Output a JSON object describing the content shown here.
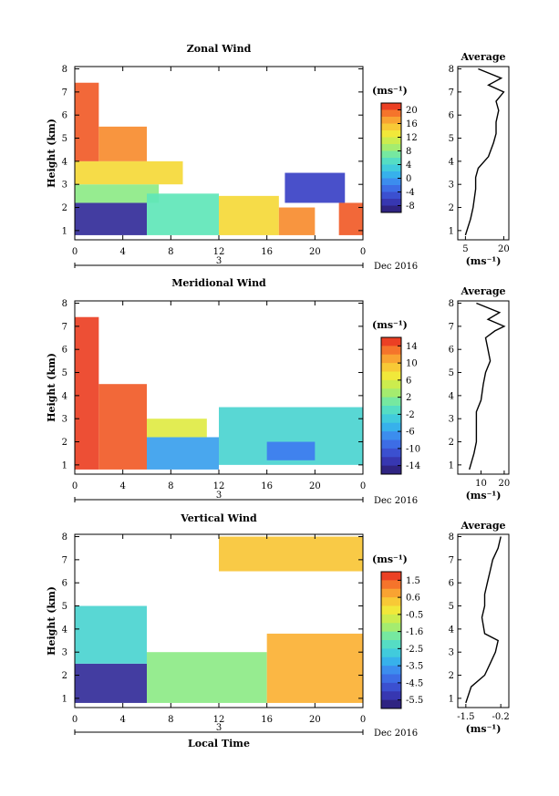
{
  "chart_data": [
    {
      "type": "heatmap",
      "title": "Zonal Wind",
      "ylabel": "Height (km)",
      "xlabel": "",
      "x_ticks": [
        "0",
        "4",
        "8",
        "12",
        "16",
        "20",
        "0"
      ],
      "y_ticks": [
        "1",
        "2",
        "3",
        "4",
        "5",
        "6",
        "7",
        "8"
      ],
      "ylim": [
        0.6,
        8.1
      ],
      "xlim": [
        0,
        24
      ],
      "date_marker": "3",
      "date_label": "Dec 2016",
      "colorbar": {
        "unit": "(ms⁻¹)",
        "ticks": [
          "20",
          "16",
          "12",
          "8",
          "4",
          "0",
          "-4",
          "-8"
        ],
        "range": [
          -10,
          22
        ]
      },
      "regions": [
        {
          "t0": 0.0,
          "t1": 6.0,
          "h0": 0.8,
          "h1": 2.2,
          "value": -8
        },
        {
          "t0": 0.0,
          "t1": 7.0,
          "h0": 2.2,
          "h1": 3.0,
          "value": 8
        },
        {
          "t0": 0.0,
          "t1": 9.0,
          "h0": 3.0,
          "h1": 4.0,
          "value": 14
        },
        {
          "t0": 0.0,
          "t1": 2.0,
          "h0": 4.0,
          "h1": 7.4,
          "value": 20
        },
        {
          "t0": 2.0,
          "t1": 6.0,
          "h0": 4.0,
          "h1": 5.5,
          "value": 18
        },
        {
          "t0": 6.0,
          "t1": 12.0,
          "h0": 0.8,
          "h1": 2.6,
          "value": 6
        },
        {
          "t0": 12.0,
          "t1": 17.0,
          "h0": 0.8,
          "h1": 2.5,
          "value": 14
        },
        {
          "t0": 17.0,
          "t1": 20.0,
          "h0": 0.8,
          "h1": 2.0,
          "value": 18
        },
        {
          "t0": 17.5,
          "t1": 22.5,
          "h0": 2.2,
          "h1": 3.5,
          "value": -6
        },
        {
          "t0": 22.0,
          "t1": 24.0,
          "h0": 0.8,
          "h1": 2.2,
          "value": 20
        }
      ],
      "avg_profile": {
        "title": "Average",
        "xlabel": "(ms⁻¹)",
        "x_ticks": [
          "5",
          "20"
        ],
        "xlim": [
          2,
          22
        ],
        "heights": [
          0.8,
          1.5,
          2.0,
          2.8,
          3.3,
          3.7,
          4.2,
          4.8,
          5.2,
          5.7,
          6.2,
          6.6,
          7.0,
          7.3,
          7.6,
          8.0
        ],
        "values": [
          5,
          7,
          8,
          9,
          9,
          10,
          14,
          16,
          17,
          17,
          18,
          17,
          20,
          14,
          19,
          10
        ]
      }
    },
    {
      "type": "heatmap",
      "title": "Meridional Wind",
      "ylabel": "Height (km)",
      "xlabel": "",
      "x_ticks": [
        "0",
        "4",
        "8",
        "12",
        "16",
        "20",
        "0"
      ],
      "y_ticks": [
        "1",
        "2",
        "3",
        "4",
        "5",
        "6",
        "7",
        "8"
      ],
      "ylim": [
        0.6,
        8.1
      ],
      "xlim": [
        0,
        24
      ],
      "date_marker": "3",
      "date_label": "Dec 2016",
      "colorbar": {
        "unit": "(ms⁻¹)",
        "ticks": [
          "14",
          "10",
          "6",
          "2",
          "-2",
          "-6",
          "-10",
          "-14"
        ],
        "range": [
          -16,
          16
        ]
      },
      "regions": [
        {
          "t0": 0.0,
          "t1": 2.0,
          "h0": 0.8,
          "h1": 7.4,
          "value": 15
        },
        {
          "t0": 2.0,
          "t1": 6.0,
          "h0": 0.8,
          "h1": 4.5,
          "value": 14
        },
        {
          "t0": 6.0,
          "t1": 12.0,
          "h0": 0.8,
          "h1": 2.2,
          "value": -6
        },
        {
          "t0": 6.0,
          "t1": 11.0,
          "h0": 2.2,
          "h1": 3.0,
          "value": 6
        },
        {
          "t0": 12.0,
          "t1": 24.0,
          "h0": 1.0,
          "h1": 3.5,
          "value": -2
        },
        {
          "t0": 16.0,
          "t1": 20.0,
          "h0": 1.2,
          "h1": 2.0,
          "value": -8
        }
      ],
      "avg_profile": {
        "title": "Average",
        "xlabel": "(ms⁻¹)",
        "x_ticks": [
          "10",
          "20"
        ],
        "xlim": [
          0,
          22
        ],
        "heights": [
          0.8,
          1.5,
          2.0,
          2.8,
          3.3,
          3.8,
          4.5,
          5.0,
          5.5,
          6.0,
          6.5,
          6.8,
          7.0,
          7.3,
          7.6,
          8.0
        ],
        "values": [
          5,
          7,
          8,
          8,
          8,
          10,
          11,
          12,
          14,
          13,
          12,
          16,
          20,
          13,
          18,
          8
        ]
      }
    },
    {
      "type": "heatmap",
      "title": "Vertical Wind",
      "ylabel": "Height (km)",
      "xlabel": "Local Time",
      "x_ticks": [
        "0",
        "4",
        "8",
        "12",
        "16",
        "20",
        "0"
      ],
      "y_ticks": [
        "1",
        "2",
        "3",
        "4",
        "5",
        "6",
        "7",
        "8"
      ],
      "ylim": [
        0.6,
        8.1
      ],
      "xlim": [
        0,
        24
      ],
      "date_marker": "3",
      "date_label": "Dec 2016",
      "colorbar": {
        "unit": "(ms⁻¹)",
        "ticks": [
          "1.5",
          "0.6",
          "-0.5",
          "-1.6",
          "-2.5",
          "-3.5",
          "-4.5",
          "-5.5"
        ],
        "range": [
          -6,
          2
        ]
      },
      "regions": [
        {
          "t0": 0.0,
          "t1": 6.0,
          "h0": 0.8,
          "h1": 2.5,
          "value": -5.5
        },
        {
          "t0": 0.0,
          "t1": 6.0,
          "h0": 2.5,
          "h1": 5.0,
          "value": -2.5
        },
        {
          "t0": 6.0,
          "t1": 16.0,
          "h0": 0.8,
          "h1": 3.0,
          "value": -1.5
        },
        {
          "t0": 16.0,
          "t1": 24.0,
          "h0": 0.8,
          "h1": 3.8,
          "value": 0.6
        },
        {
          "t0": 12.0,
          "t1": 24.0,
          "h0": 6.5,
          "h1": 8.0,
          "value": 0.3
        }
      ],
      "avg_profile": {
        "title": "Average",
        "xlabel": "(ms⁻¹)",
        "x_ticks": [
          "-1.5",
          "-0.2"
        ],
        "xlim": [
          -1.8,
          0.1
        ],
        "heights": [
          0.8,
          1.5,
          2.0,
          2.5,
          3.0,
          3.5,
          3.8,
          4.5,
          5.0,
          5.5,
          6.0,
          6.5,
          7.0,
          7.5,
          8.0
        ],
        "values": [
          -1.5,
          -1.3,
          -0.8,
          -0.6,
          -0.4,
          -0.3,
          -0.8,
          -0.9,
          -0.8,
          -0.8,
          -0.7,
          -0.6,
          -0.5,
          -0.3,
          -0.2
        ]
      }
    }
  ]
}
